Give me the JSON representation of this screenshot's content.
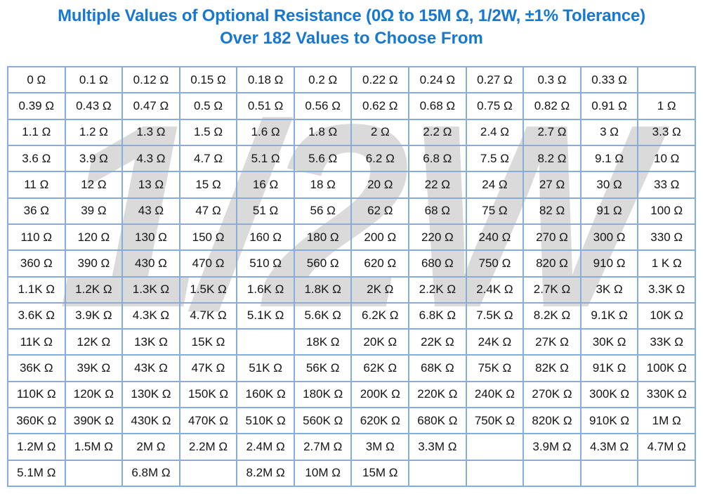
{
  "title": {
    "line1": "Multiple Values of Optional Resistance (0Ω to 15M Ω, 1/2W, ±1% Tolerance)",
    "line2": "Over 182 Values to Choose From"
  },
  "watermark_text": "1/2W",
  "colors": {
    "title_blue": "#1778d2",
    "grid_blue": "#86aedd",
    "cell_text": "#141414",
    "watermark_gray": "#dadada",
    "background": "#ffffff"
  },
  "table": {
    "columns": 12,
    "rows": [
      [
        "0 Ω",
        "0.1 Ω",
        "0.12 Ω",
        "0.15 Ω",
        "0.18 Ω",
        "0.2 Ω",
        "0.22 Ω",
        "0.24 Ω",
        "0.27 Ω",
        "0.3 Ω",
        "0.33 Ω",
        ""
      ],
      [
        "0.39 Ω",
        "0.43 Ω",
        "0.47 Ω",
        "0.5 Ω",
        "0.51 Ω",
        "0.56 Ω",
        "0.62 Ω",
        "0.68 Ω",
        "0.75 Ω",
        "0.82 Ω",
        "0.91 Ω",
        "1 Ω"
      ],
      [
        "1.1 Ω",
        "1.2 Ω",
        "1.3 Ω",
        "1.5 Ω",
        "1.6 Ω",
        "1.8 Ω",
        "2 Ω",
        "2.2 Ω",
        "2.4 Ω",
        "2.7 Ω",
        "3 Ω",
        "3.3 Ω"
      ],
      [
        "3.6 Ω",
        "3.9 Ω",
        "4.3 Ω",
        "4.7 Ω",
        "5.1 Ω",
        "5.6 Ω",
        "6.2 Ω",
        "6.8 Ω",
        "7.5 Ω",
        "8.2 Ω",
        "9.1 Ω",
        "10 Ω"
      ],
      [
        "11 Ω",
        "12 Ω",
        "13 Ω",
        "15 Ω",
        "16 Ω",
        "18 Ω",
        "20 Ω",
        "22 Ω",
        "24 Ω",
        "27 Ω",
        "30 Ω",
        "33 Ω"
      ],
      [
        "36 Ω",
        "39 Ω",
        "43 Ω",
        "47 Ω",
        "51 Ω",
        "56 Ω",
        "62 Ω",
        "68 Ω",
        "75 Ω",
        "82 Ω",
        "91 Ω",
        "100 Ω"
      ],
      [
        "110 Ω",
        "120 Ω",
        "130 Ω",
        "150 Ω",
        "160 Ω",
        "180 Ω",
        "200 Ω",
        "220 Ω",
        "240 Ω",
        "270 Ω",
        "300 Ω",
        "330 Ω"
      ],
      [
        "360 Ω",
        "390 Ω",
        "430 Ω",
        "470 Ω",
        "510 Ω",
        "560 Ω",
        "620 Ω",
        "680 Ω",
        "750 Ω",
        "820 Ω",
        "910 Ω",
        "1 K Ω"
      ],
      [
        "1.1K Ω",
        "1.2K Ω",
        "1.3K Ω",
        "1.5K Ω",
        "1.6K Ω",
        "1.8K Ω",
        "2K Ω",
        "2.2K Ω",
        "2.4K Ω",
        "2.7K Ω",
        "3K Ω",
        "3.3K Ω"
      ],
      [
        "3.6K Ω",
        "3.9K Ω",
        "4.3K Ω",
        "4.7K Ω",
        "5.1K Ω",
        "5.6K Ω",
        "6.2K Ω",
        "6.8K Ω",
        "7.5K Ω",
        "8.2K Ω",
        "9.1K Ω",
        "10K Ω"
      ],
      [
        "11K Ω",
        "12K Ω",
        "13K Ω",
        "15K Ω",
        "",
        "18K Ω",
        "20K Ω",
        "22K Ω",
        "24K Ω",
        "27K Ω",
        "30K Ω",
        "33K Ω"
      ],
      [
        "36K Ω",
        "39K Ω",
        "43K Ω",
        "47K Ω",
        "51K Ω",
        "56K Ω",
        "62K Ω",
        "68K Ω",
        "75K Ω",
        "82K Ω",
        "91K Ω",
        "100K Ω"
      ],
      [
        "110K Ω",
        "120K Ω",
        "130K Ω",
        "150K Ω",
        "160K Ω",
        "180K Ω",
        "200K Ω",
        "220K Ω",
        "240K Ω",
        "270K Ω",
        "300K Ω",
        "330K Ω"
      ],
      [
        "360K Ω",
        "390K Ω",
        "430K Ω",
        "470K Ω",
        "510K Ω",
        "560K Ω",
        "620K Ω",
        "680K Ω",
        "750K Ω",
        "820K Ω",
        "910K Ω",
        "1M Ω"
      ],
      [
        "1.2M Ω",
        "1.5M Ω",
        "2M Ω",
        "2.2M Ω",
        "2.4M Ω",
        "2.7M Ω",
        "3M Ω",
        "3.3M Ω",
        "",
        "3.9M Ω",
        "4.3M Ω",
        "4.7M Ω"
      ],
      [
        "5.1M Ω",
        "",
        "6.8M Ω",
        "",
        "8.2M Ω",
        "10M Ω",
        "15M Ω",
        "",
        "",
        "",
        "",
        ""
      ]
    ]
  }
}
